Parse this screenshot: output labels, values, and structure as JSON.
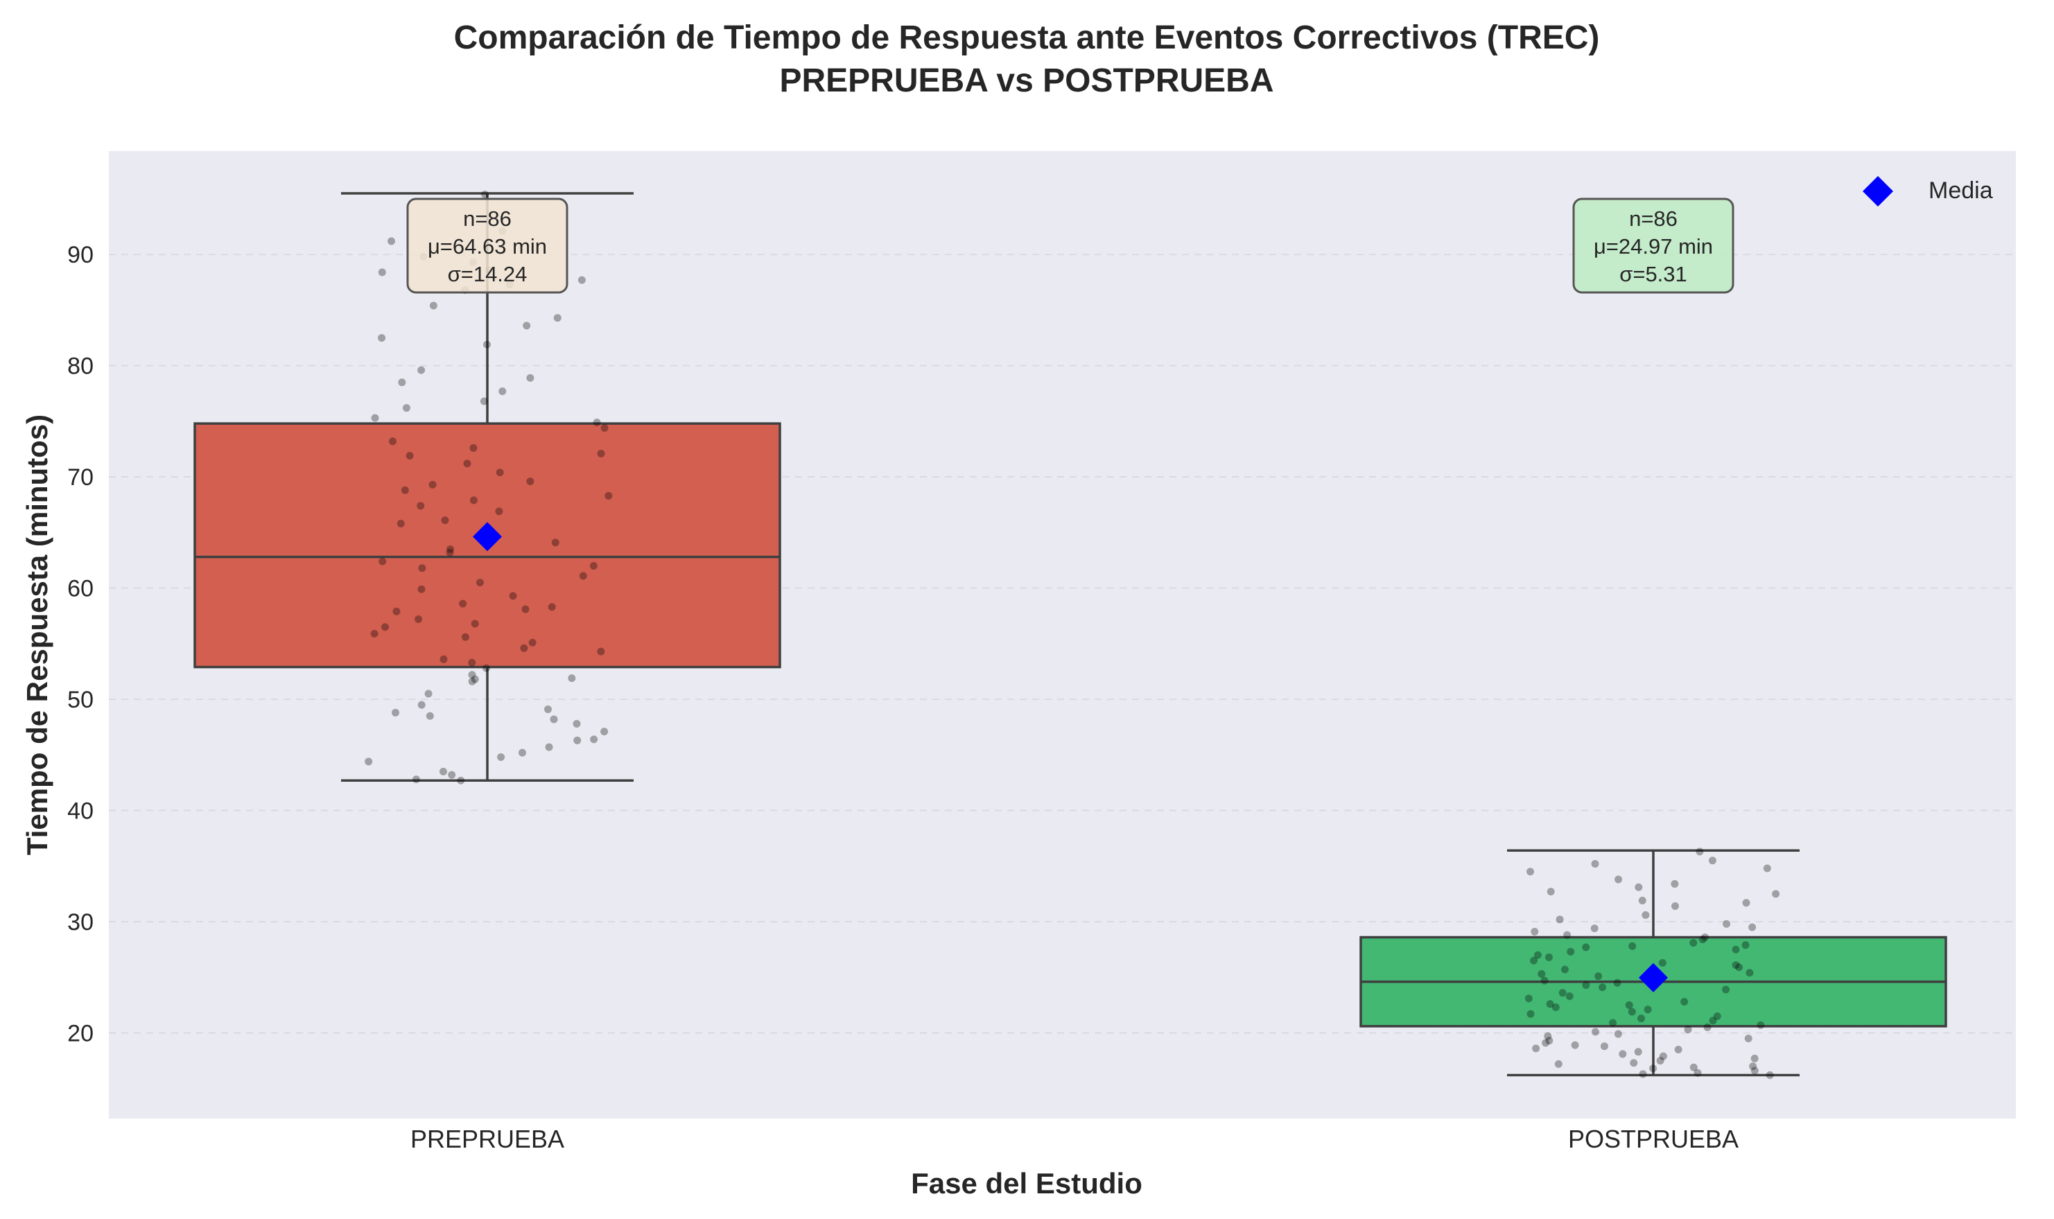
{
  "chart_data": {
    "type": "box",
    "title_line1": "Comparación de Tiempo de Respuesta ante Eventos Correctivos (TREC)",
    "title_line2": "PREPRUEBA vs POSTPRUEBA",
    "xlabel": "Fase del Estudio",
    "ylabel": "Tiempo de Respuesta (minutos)",
    "ylim": [
      12.3,
      99.3
    ],
    "yticks": [
      20,
      30,
      40,
      50,
      60,
      70,
      80,
      90
    ],
    "grid": true,
    "legend": {
      "label": "Media",
      "placement": "top-right"
    },
    "categories": [
      "PREPRUEBA",
      "POSTPRUEBA"
    ],
    "boxes": [
      {
        "name": "PREPRUEBA",
        "color": "#D35F50",
        "whisker_low": 42.7,
        "q1": 52.9,
        "median": 62.8,
        "q3": 74.8,
        "whisker_high": 95.5,
        "mean": 64.63,
        "stats": {
          "n": "n=86",
          "mu": "μ=64.63 min",
          "sigma": "σ=14.24"
        },
        "stats_box_color": "#F2E4D2",
        "points": [
          95.4,
          92.1,
          91.2,
          89.8,
          89.3,
          88.6,
          88.4,
          87.7,
          87.3,
          86.8,
          85.4,
          84.3,
          83.6,
          82.5,
          81.9,
          79.6,
          78.9,
          78.5,
          77.7,
          76.8,
          76.2,
          75.3,
          74.9,
          74.4,
          73.2,
          72.6,
          72.1,
          71.9,
          71.2,
          70.4,
          69.6,
          69.3,
          68.8,
          68.3,
          67.9,
          67.4,
          66.9,
          66.1,
          65.8,
          64.1,
          63.5,
          63.2,
          62.4,
          62.0,
          61.8,
          61.1,
          60.5,
          59.9,
          59.3,
          58.6,
          58.3,
          58.1,
          57.9,
          57.2,
          56.8,
          56.5,
          55.9,
          55.6,
          55.1,
          54.6,
          54.3,
          53.6,
          53.3,
          52.8,
          52.2,
          51.9,
          51.8,
          51.6,
          50.5,
          49.5,
          49.1,
          48.8,
          48.5,
          48.2,
          47.8,
          47.1,
          46.4,
          46.3,
          45.7,
          45.2,
          44.8,
          44.4,
          43.5,
          43.2,
          42.8,
          42.7
        ]
      },
      {
        "name": "POSTPRUEBA",
        "color": "#42B873",
        "whisker_low": 16.2,
        "q1": 20.6,
        "median": 24.6,
        "q3": 28.6,
        "whisker_high": 36.4,
        "mean": 24.97,
        "stats": {
          "n": "n=86",
          "mu": "μ=24.97 min",
          "sigma": "σ=5.31"
        },
        "stats_box_color": "#BDEBC3",
        "points": [
          36.3,
          35.5,
          35.2,
          34.8,
          34.5,
          33.8,
          33.4,
          33.1,
          32.7,
          32.5,
          31.9,
          31.7,
          31.4,
          30.6,
          30.2,
          29.8,
          29.5,
          29.4,
          29.1,
          28.8,
          28.6,
          28.4,
          28.1,
          27.9,
          27.7,
          27.5,
          27.3,
          27.0,
          26.8,
          26.5,
          26.3,
          26.1,
          25.9,
          25.7,
          25.5,
          25.3,
          25.1,
          24.9,
          24.7,
          24.5,
          24.3,
          24.1,
          23.9,
          23.6,
          23.3,
          23.1,
          22.8,
          22.6,
          22.5,
          22.3,
          22.1,
          21.9,
          21.7,
          21.5,
          21.3,
          21.1,
          20.9,
          20.7,
          20.5,
          20.3,
          20.1,
          19.9,
          19.7,
          19.5,
          19.3,
          19.1,
          18.9,
          18.8,
          18.6,
          18.5,
          18.3,
          18.1,
          17.9,
          17.7,
          17.5,
          17.3,
          17.2,
          17.0,
          16.9,
          16.8,
          16.6,
          16.4,
          16.3,
          16.2,
          25.4,
          27.8
        ]
      }
    ],
    "mean_marker_color": "#0000FF"
  }
}
